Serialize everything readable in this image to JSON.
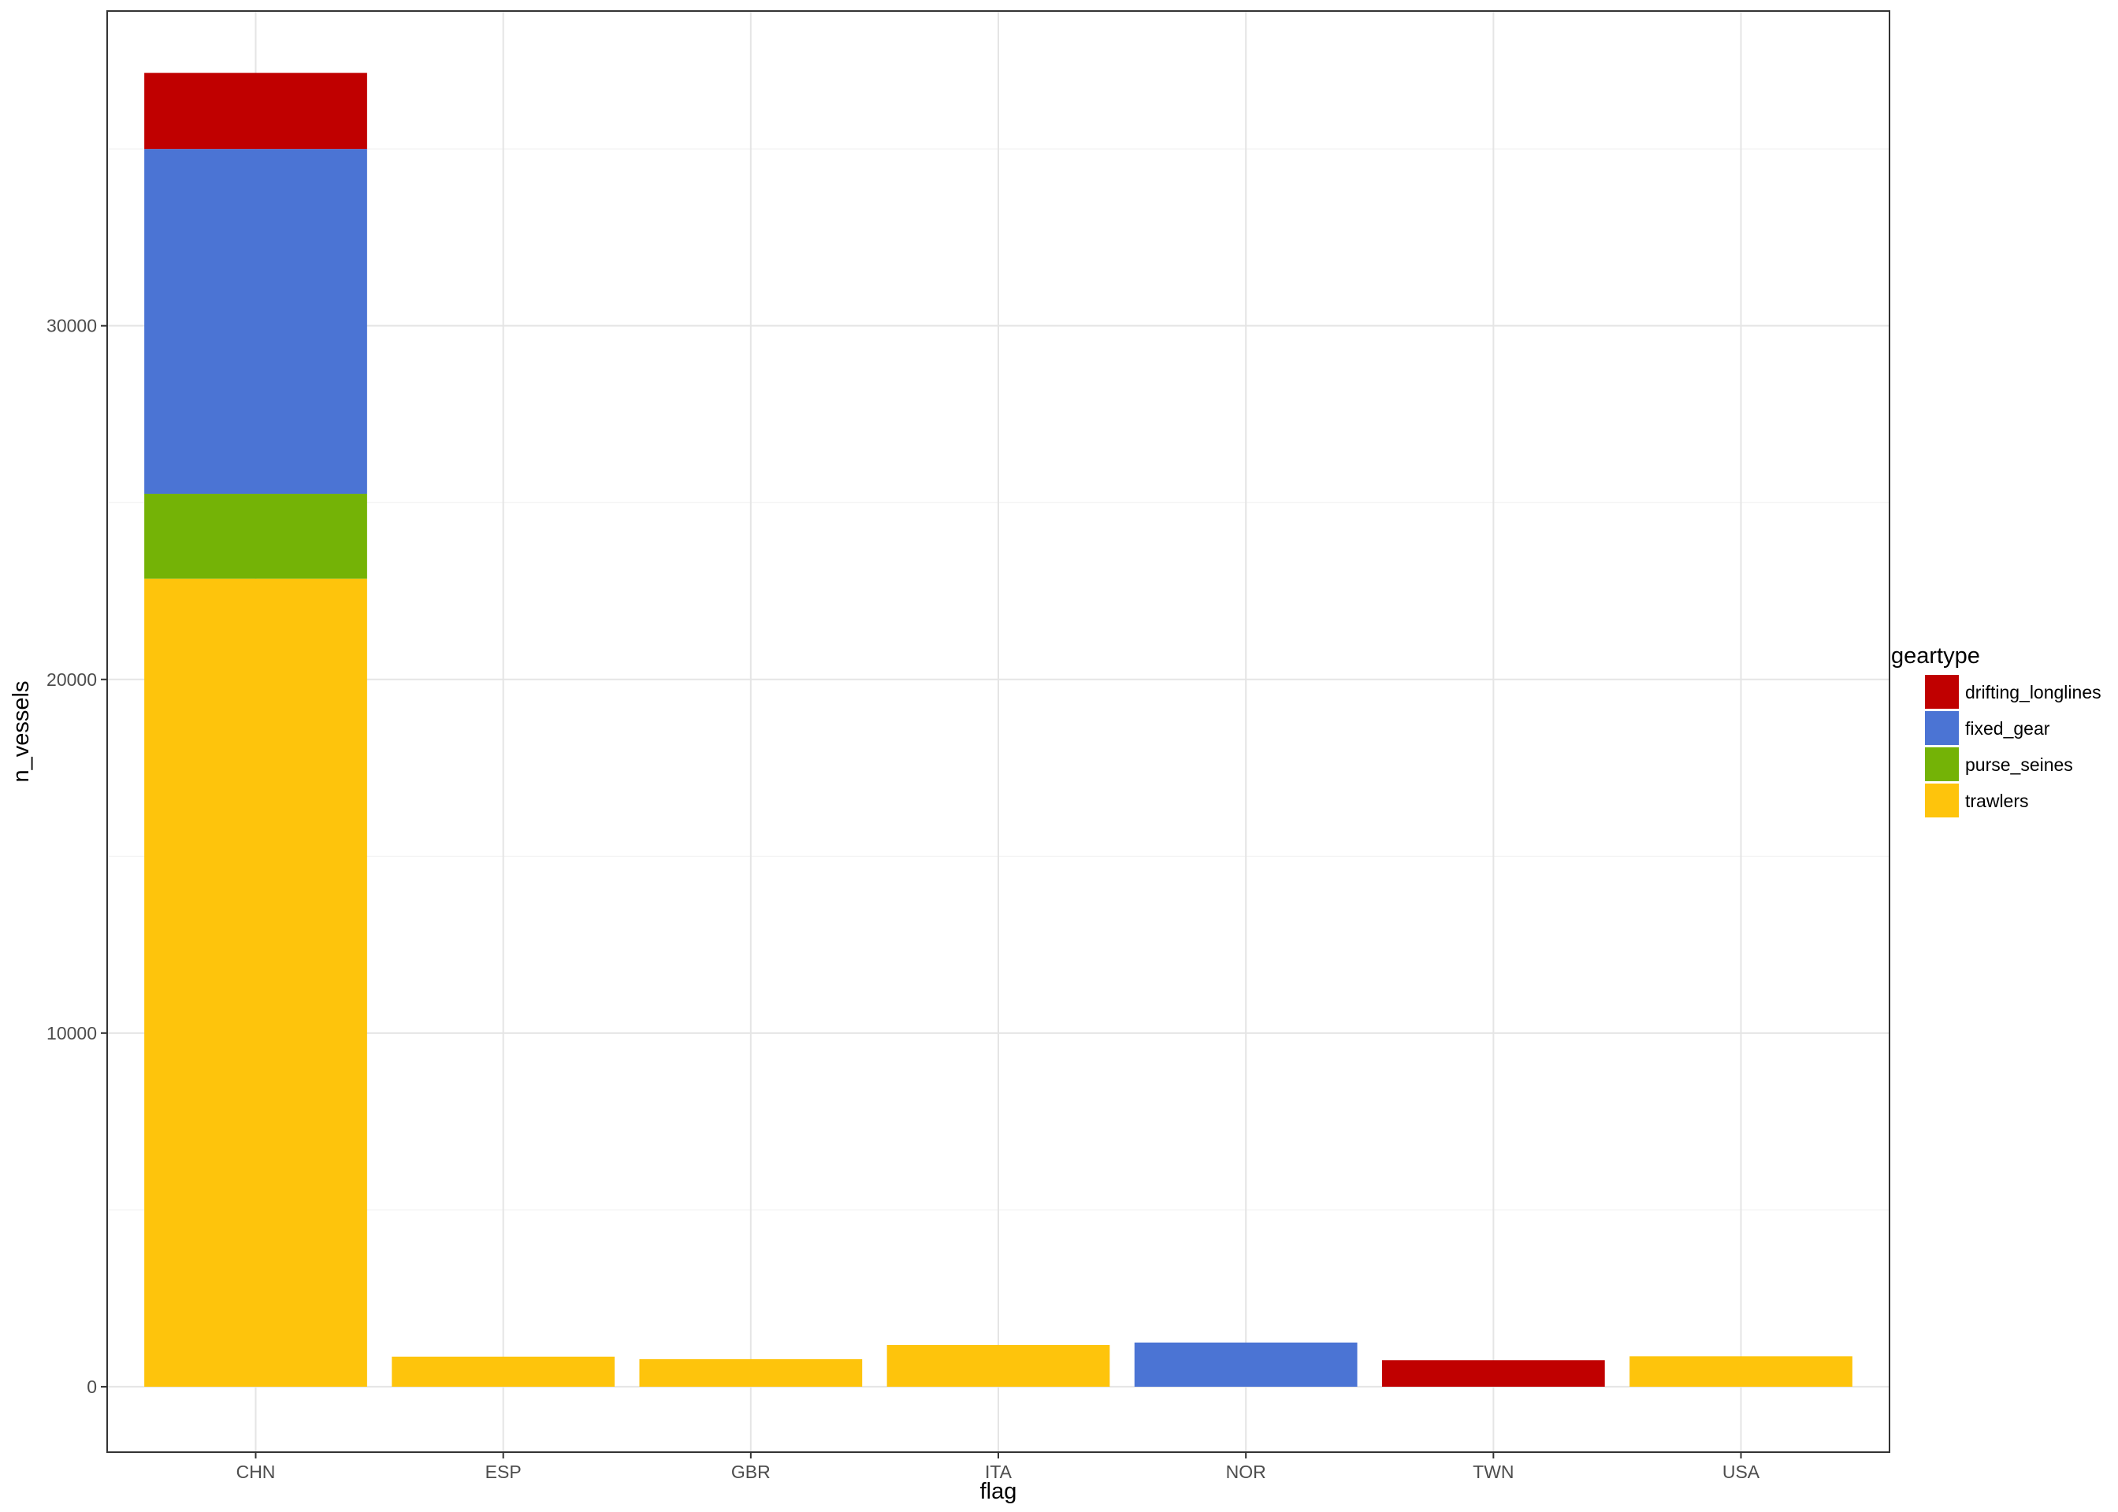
{
  "chart_data": {
    "type": "bar",
    "stacked": true,
    "categories": [
      "CHN",
      "ESP",
      "GBR",
      "ITA",
      "NOR",
      "TWN",
      "USA"
    ],
    "series": [
      {
        "name": "drifting_longlines",
        "color": "#c00000",
        "values": [
          2150,
          0,
          0,
          0,
          0,
          750,
          0
        ]
      },
      {
        "name": "fixed_gear",
        "color": "#4b74d4",
        "values": [
          9750,
          0,
          0,
          0,
          1250,
          0,
          0
        ]
      },
      {
        "name": "purse_seines",
        "color": "#74b306",
        "values": [
          2400,
          0,
          0,
          0,
          0,
          0,
          0
        ]
      },
      {
        "name": "trawlers",
        "color": "#fec40c",
        "values": [
          22850,
          850,
          780,
          1180,
          0,
          0,
          860
        ]
      }
    ],
    "xlabel": "flag",
    "ylabel": "n_vessels",
    "ylim": [
      -1850,
      38900
    ],
    "yticks": [
      0,
      10000,
      20000,
      30000
    ],
    "ytick_labels": [
      "0",
      "10000",
      "20000",
      "30000"
    ],
    "grid": true,
    "legend": {
      "title": "geartype",
      "position": "right"
    }
  }
}
